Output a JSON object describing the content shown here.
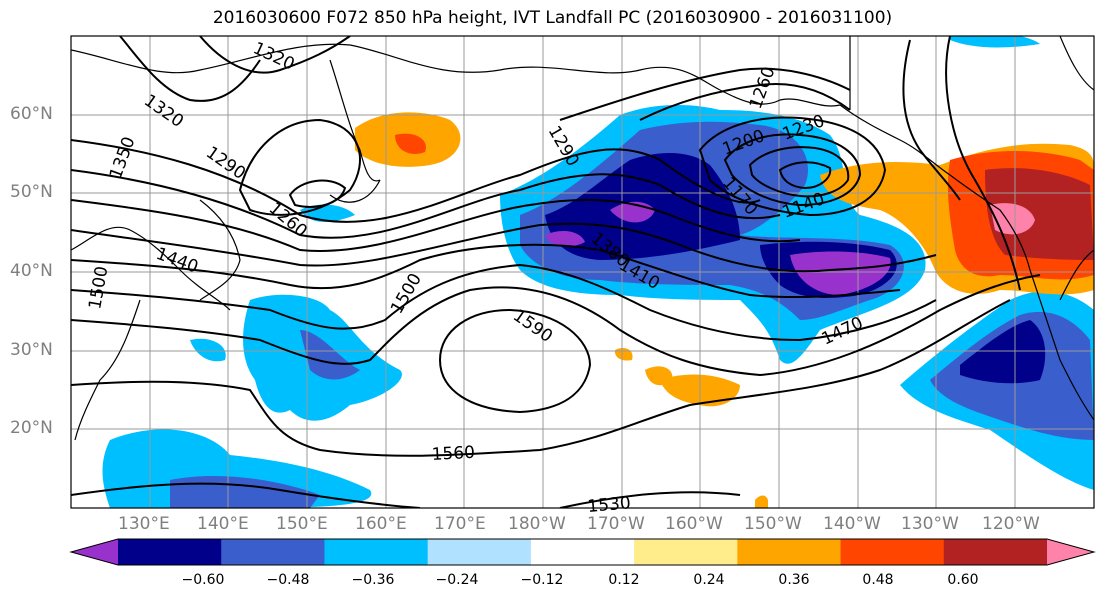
{
  "title": "2016030600 F072 850 hPa height, IVT Landfall PC (2016030900 - 2016031100)",
  "map": {
    "lon_labels": [
      "130°E",
      "140°E",
      "150°E",
      "160°E",
      "170°E",
      "180°W",
      "170°W",
      "160°W",
      "150°W",
      "140°W",
      "130°W",
      "120°W"
    ],
    "lat_labels": [
      "60°N",
      "50°N",
      "40°N",
      "30°N",
      "20°N"
    ],
    "contour_labels": [
      "1320",
      "1320",
      "1350",
      "1290",
      "1260",
      "1440",
      "1500",
      "1500",
      "1590",
      "1560",
      "1530",
      "1290",
      "1260",
      "1230",
      "1200",
      "1170",
      "1140",
      "1410",
      "1470",
      "1380"
    ]
  },
  "colorbar": {
    "ticks": [
      "−0.60",
      "−0.48",
      "−0.36",
      "−0.24",
      "−0.12",
      "0.12",
      "0.24",
      "0.36",
      "0.48",
      "0.60"
    ],
    "colors": [
      "#9932CC",
      "#00008B",
      "#3A5FCD",
      "#00BFFF",
      "#B0E2FF",
      "#FFFFFF",
      "#FFEC8B",
      "#FFA500",
      "#FF4500",
      "#B22222",
      "#FF82AB"
    ]
  }
}
